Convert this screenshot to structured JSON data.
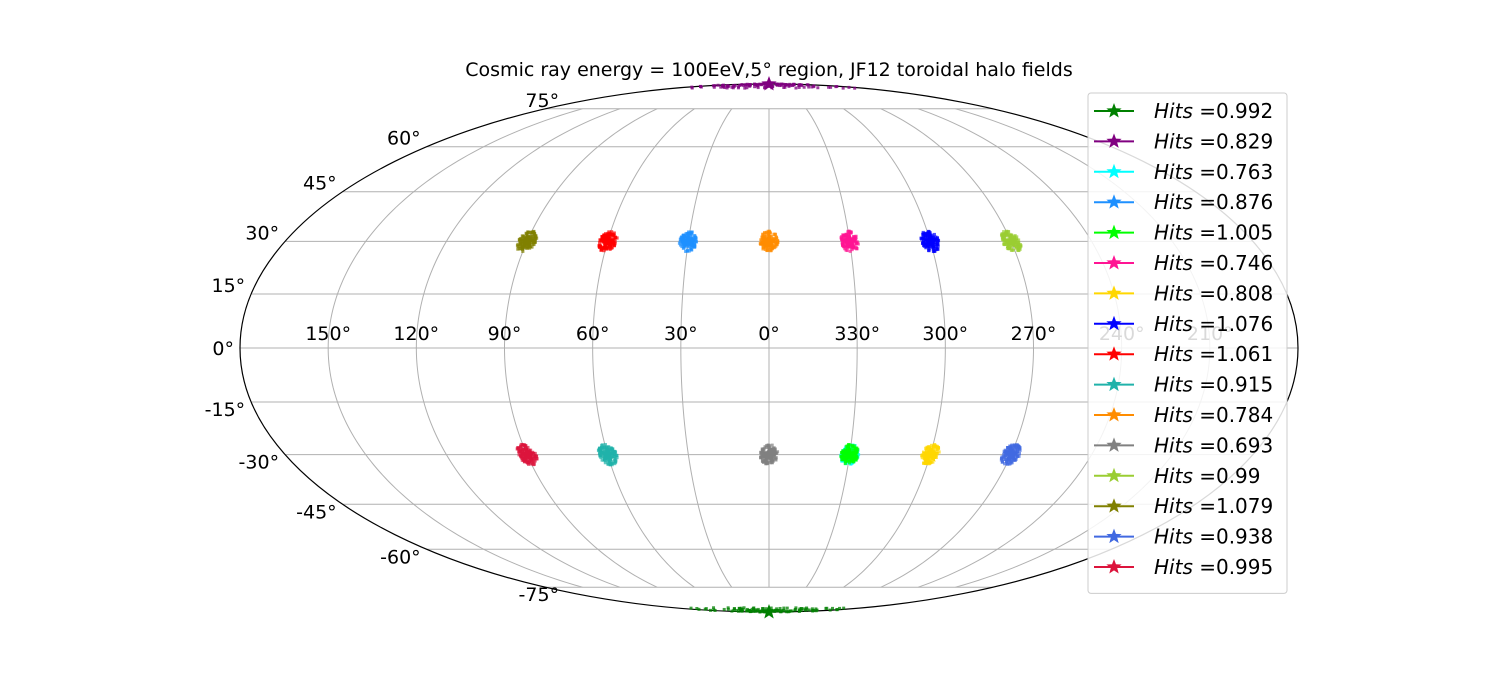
{
  "chart_data": {
    "type": "scatter",
    "projection": "mollweide",
    "title": "Cosmic ray energy = 100EeV,5$^\\circ$ region, JF12 toroidal halo fields",
    "title_display": "Cosmic ray energy = 100EeV,5° region, JF12 toroidal halo fields",
    "grid": true,
    "legend_placement": "right",
    "lon_tick_labels": [
      {
        "lon": 150,
        "label": "150°"
      },
      {
        "lon": 120,
        "label": "120°"
      },
      {
        "lon": 90,
        "label": "90°"
      },
      {
        "lon": 60,
        "label": "60°"
      },
      {
        "lon": 30,
        "label": "30°"
      },
      {
        "lon": 0,
        "label": "0°"
      },
      {
        "lon": -30,
        "label": "330°"
      },
      {
        "lon": -60,
        "label": "300°"
      },
      {
        "lon": -90,
        "label": "270°"
      },
      {
        "lon": -120,
        "label": "240°"
      },
      {
        "lon": -150,
        "label": "210°"
      }
    ],
    "lat_tick_labels": [
      {
        "lat": 75,
        "label": "75°"
      },
      {
        "lat": 60,
        "label": "60°"
      },
      {
        "lat": 45,
        "label": "45°"
      },
      {
        "lat": 30,
        "label": "30°"
      },
      {
        "lat": 15,
        "label": "15°"
      },
      {
        "lat": 0,
        "label": "0°"
      },
      {
        "lat": -15,
        "label": "-15°"
      },
      {
        "lat": -30,
        "label": "-30°"
      },
      {
        "lat": -45,
        "label": "-45°"
      },
      {
        "lat": -60,
        "label": "-60°"
      },
      {
        "lat": -75,
        "label": "-75°"
      }
    ],
    "legend_prefix": "Hits",
    "legend_sep": " =",
    "series": [
      {
        "name": "Hits =0.992",
        "value": "0.992",
        "color": "#008000",
        "center": [
          0,
          -90
        ],
        "spread": 4
      },
      {
        "name": "Hits =0.829",
        "value": "0.829",
        "color": "#800080",
        "center": [
          0,
          90
        ],
        "spread": 4
      },
      {
        "name": "Hits =0.763",
        "value": "0.763",
        "color": "#00ffff",
        "center": [
          -30,
          -30
        ],
        "spread": 3
      },
      {
        "name": "Hits =0.876",
        "value": "0.876",
        "color": "#1e90ff",
        "center": [
          30,
          30
        ],
        "spread": 3
      },
      {
        "name": "Hits =1.005",
        "value": "1.005",
        "color": "#00ff00",
        "center": [
          -30,
          -30
        ],
        "spread": 3
      },
      {
        "name": "Hits =0.746",
        "value": "0.746",
        "color": "#ff1493",
        "center": [
          -30,
          30
        ],
        "spread": 3
      },
      {
        "name": "Hits =0.808",
        "value": "0.808",
        "color": "#ffd700",
        "center": [
          -60,
          -30
        ],
        "spread": 3
      },
      {
        "name": "Hits =1.076",
        "value": "1.076",
        "color": "#0000ff",
        "center": [
          -60,
          30
        ],
        "spread": 3
      },
      {
        "name": "Hits =1.061",
        "value": "1.061",
        "color": "#ff0000",
        "center": [
          60,
          30
        ],
        "spread": 3
      },
      {
        "name": "Hits =0.915",
        "value": "0.915",
        "color": "#20b2aa",
        "center": [
          60,
          -30
        ],
        "spread": 3
      },
      {
        "name": "Hits =0.784",
        "value": "0.784",
        "color": "#ff8c00",
        "center": [
          0,
          30
        ],
        "spread": 3
      },
      {
        "name": "Hits =0.693",
        "value": "0.693",
        "color": "#808080",
        "center": [
          0,
          -30
        ],
        "spread": 3
      },
      {
        "name": "Hits =0.99",
        "value": "0.99",
        "color": "#9acd32",
        "center": [
          -90,
          30
        ],
        "spread": 3
      },
      {
        "name": "Hits =1.079",
        "value": "1.079",
        "color": "#808000",
        "center": [
          90,
          30
        ],
        "spread": 3
      },
      {
        "name": "Hits =0.938",
        "value": "0.938",
        "color": "#4169e1",
        "center": [
          -90,
          -30
        ],
        "spread": 3
      },
      {
        "name": "Hits =0.995",
        "value": "0.995",
        "color": "#dc143c",
        "center": [
          90,
          -30
        ],
        "spread": 3
      }
    ]
  }
}
